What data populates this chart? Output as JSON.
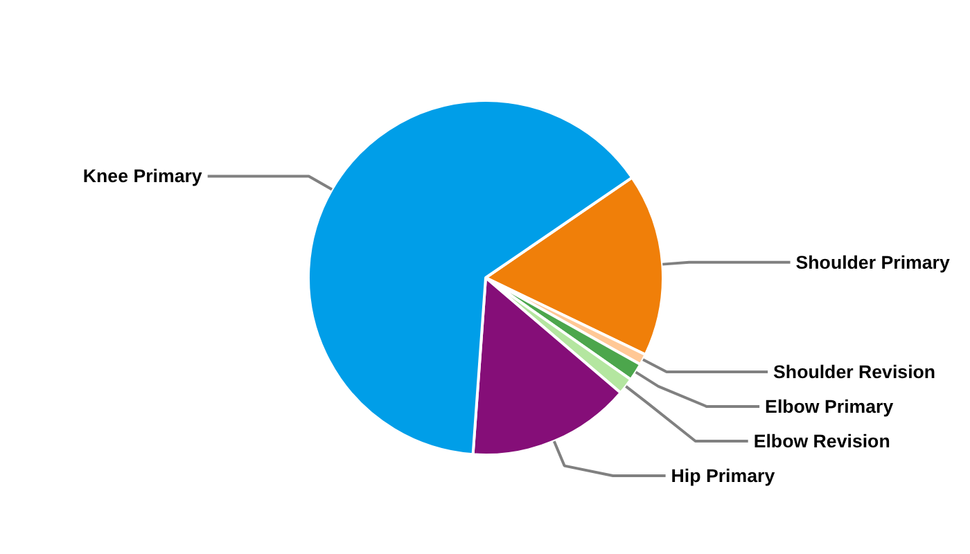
{
  "chart_data": {
    "type": "pie",
    "categories": [
      "Shoulder Primary",
      "Shoulder Revision",
      "Elbow Primary",
      "Elbow Revision",
      "Hip Primary",
      "Knee Primary"
    ],
    "values": [
      16.7,
      1.0,
      1.6,
      1.5,
      14.9,
      64.3
    ],
    "colors": [
      "#f07f09",
      "#ffc896",
      "#4ca64c",
      "#b4e6a0",
      "#850e78",
      "#009ee8"
    ]
  }
}
